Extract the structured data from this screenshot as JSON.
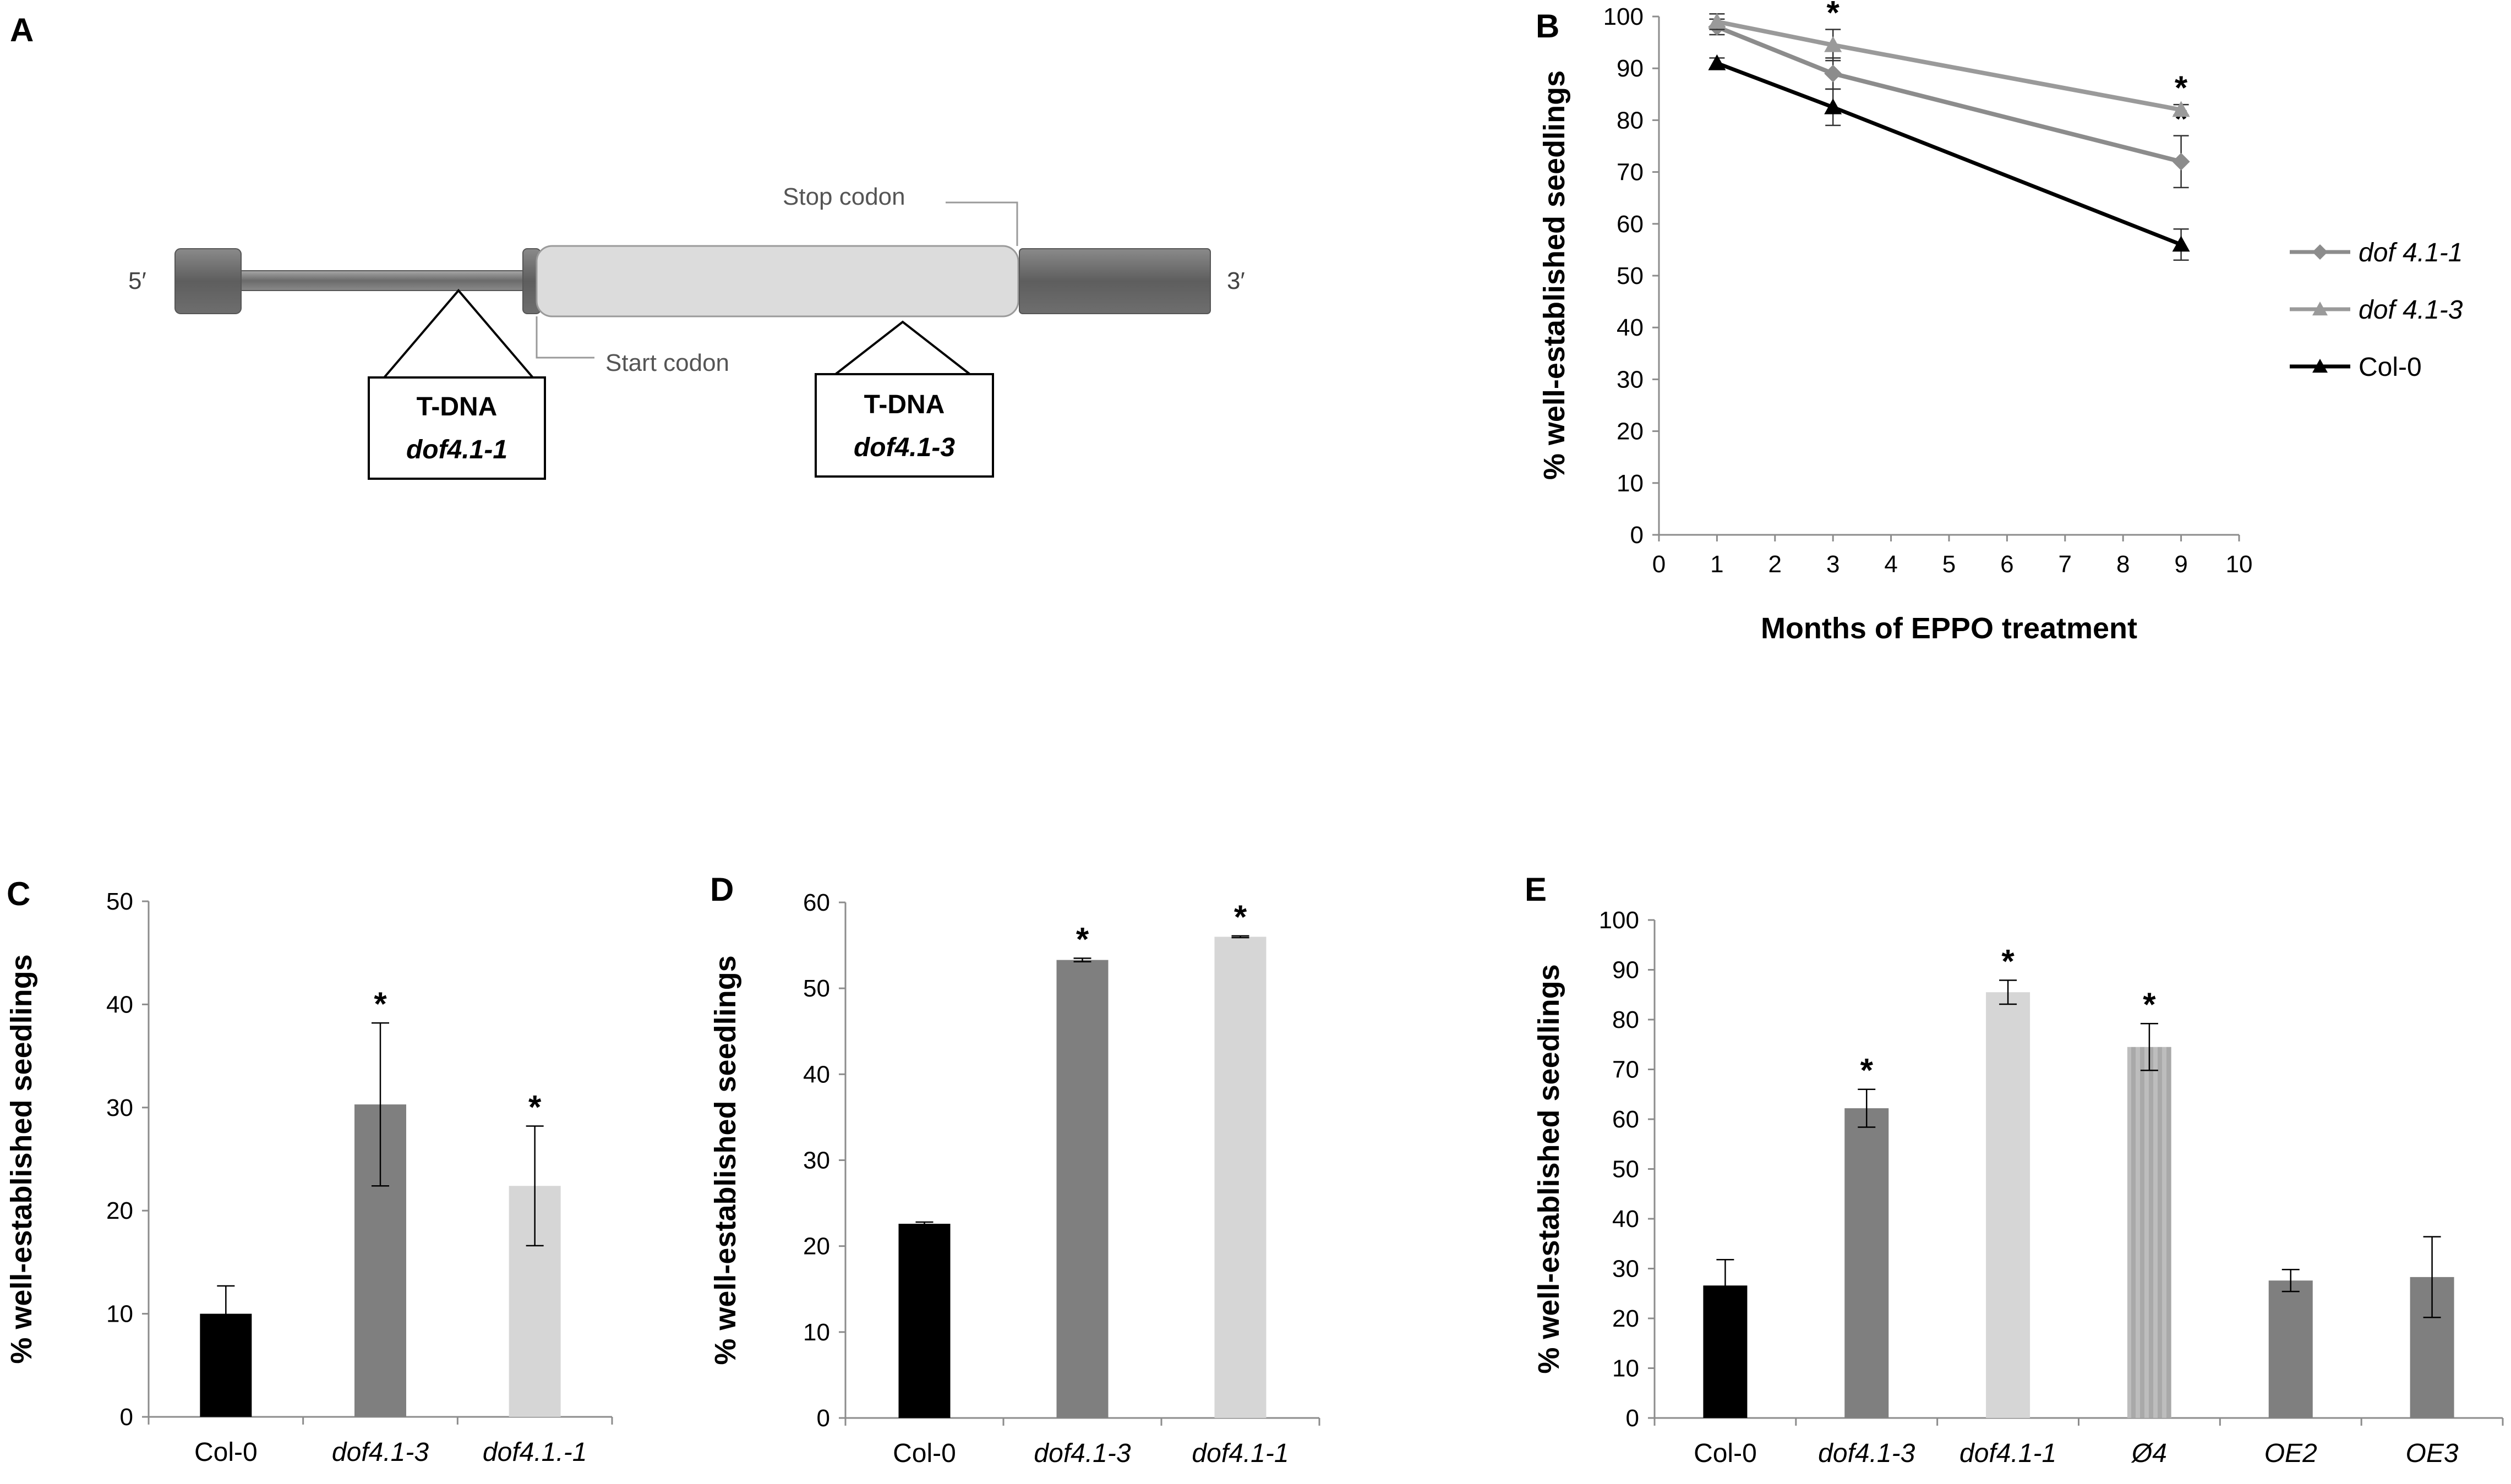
{
  "panel_letters": [
    "A",
    "B",
    "C",
    "D",
    "E"
  ],
  "gene_diagram": {
    "five_prime": "5′",
    "three_prime": "3′",
    "stop_codon": "Stop codon",
    "start_codon": "Start codon",
    "tdna1": {
      "label": "T-DNA",
      "allele": "dof4.1-1"
    },
    "tdna2": {
      "label": "T-DNA",
      "allele": "dof4.1-3"
    }
  },
  "chart_data": [
    {
      "panel": "B",
      "type": "line",
      "title": "",
      "xlabel": "Months of EPPO treatment",
      "ylabel": "% well-established seedlings",
      "xlim": [
        0,
        10
      ],
      "ylim": [
        0,
        100
      ],
      "xticks": [
        0,
        1,
        2,
        3,
        4,
        5,
        6,
        7,
        8,
        9,
        10
      ],
      "yticks": [
        0,
        10,
        20,
        30,
        40,
        50,
        60,
        70,
        80,
        90,
        100
      ],
      "x": [
        1,
        3,
        9
      ],
      "legend_position": "right",
      "series": [
        {
          "name": "dof 4.1-1",
          "italic": true,
          "marker": "diamond",
          "color": "#8c8c8c",
          "values": [
            98,
            89,
            72
          ],
          "errors": [
            1.5,
            3,
            5
          ],
          "significant": [
            false,
            false,
            true
          ]
        },
        {
          "name": "dof 4.1-3",
          "italic": true,
          "marker": "triangle",
          "color": "#9a9a9a",
          "values": [
            99,
            94.5,
            82
          ],
          "errors": [
            1.5,
            3,
            1
          ],
          "significant": [
            false,
            true,
            true
          ]
        },
        {
          "name": "Col-0",
          "italic": false,
          "marker": "triangle",
          "color": "#000000",
          "values": [
            91,
            82.5,
            56
          ],
          "errors": [
            1,
            3.5,
            3
          ],
          "significant": [
            false,
            false,
            false
          ]
        }
      ],
      "star": "*"
    },
    {
      "panel": "C",
      "type": "bar",
      "ylabel": "% well-established seedlings",
      "ylim": [
        0,
        50
      ],
      "yticks": [
        0,
        10,
        20,
        30,
        40,
        50
      ],
      "categories": [
        "Col-0",
        "dof4.1-3",
        "dof4.1.-1"
      ],
      "italic": [
        false,
        true,
        true
      ],
      "values": [
        10,
        30.3,
        22.4
      ],
      "errors": [
        2.7,
        7.9,
        5.8
      ],
      "colors": [
        "#000000",
        "#7f7f7f",
        "#d6d6d6"
      ],
      "significant": [
        false,
        true,
        true
      ],
      "star": "*"
    },
    {
      "panel": "D",
      "type": "bar",
      "ylabel": "% well-established seedlings",
      "ylim": [
        0,
        60
      ],
      "yticks": [
        0,
        10,
        20,
        30,
        40,
        50,
        60
      ],
      "categories": [
        "Col-0",
        "dof4.1-3",
        "dof4.1-1"
      ],
      "italic": [
        false,
        true,
        true
      ],
      "values": [
        22.6,
        53.3,
        56
      ],
      "errors": [
        0.2,
        0.2,
        0.1
      ],
      "colors": [
        "#000000",
        "#7f7f7f",
        "#d6d6d6"
      ],
      "significant": [
        false,
        true,
        true
      ],
      "star": "*"
    },
    {
      "panel": "E",
      "type": "bar",
      "ylabel": "% well-established seedlings",
      "ylim": [
        0,
        100
      ],
      "yticks": [
        0,
        10,
        20,
        30,
        40,
        50,
        60,
        70,
        80,
        90,
        100
      ],
      "categories": [
        "Col-0",
        "dof4.1-3",
        "dof4.1-1",
        "Ø4",
        "OE2",
        "OE3"
      ],
      "italic": [
        false,
        true,
        true,
        true,
        true,
        true
      ],
      "values": [
        26.6,
        62.2,
        85.5,
        74.5,
        27.6,
        28.3
      ],
      "errors": [
        5.2,
        3.8,
        2.4,
        4.7,
        2.2,
        8.1
      ],
      "colors": [
        "#000000",
        "#7f7f7f",
        "#d6d6d6",
        "#b4b4b4",
        "#7f7f7f",
        "#7f7f7f"
      ],
      "significant": [
        false,
        true,
        true,
        true,
        false,
        false
      ],
      "star": "*"
    }
  ]
}
